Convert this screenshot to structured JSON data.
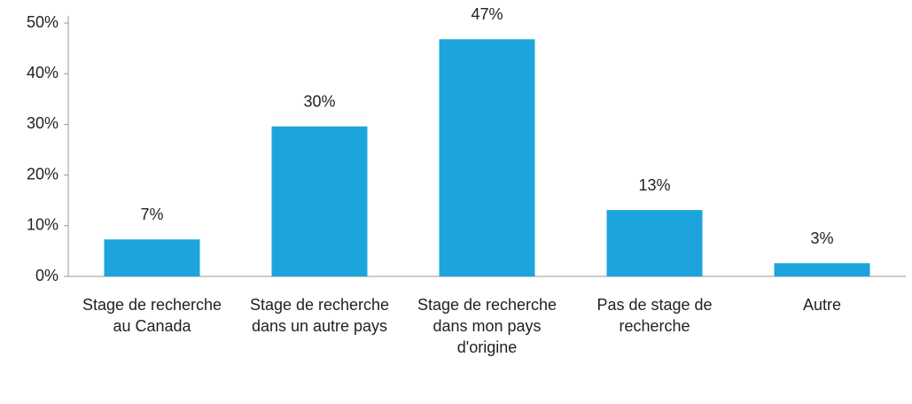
{
  "chart_data": {
    "type": "bar",
    "categories": [
      "Stage de recherche au Canada",
      "Stage de recherche dans un autre pays",
      "Stage de recherche dans mon pays d'origine",
      "Pas de stage de recherche",
      "Autre"
    ],
    "values": [
      7.3,
      29.6,
      46.8,
      13.1,
      2.6
    ],
    "value_labels": [
      "7%",
      "30%",
      "47%",
      "13%",
      "3%"
    ],
    "color": "#1ea4dc",
    "ylim": [
      0,
      50
    ],
    "yticks": [
      {
        "value": 0,
        "label": "0%"
      },
      {
        "value": 10,
        "label": "10%"
      },
      {
        "value": 20,
        "label": "20%"
      },
      {
        "value": 30,
        "label": "30%"
      },
      {
        "value": 40,
        "label": "40%"
      },
      {
        "value": 50,
        "label": "50%"
      }
    ],
    "grid": false
  }
}
